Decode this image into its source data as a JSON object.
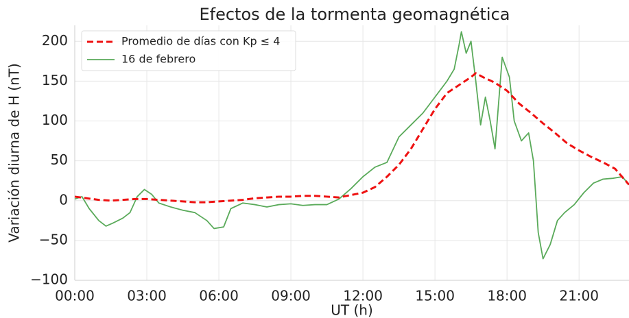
{
  "chart_data": {
    "type": "line",
    "title": "Efectos de la tormenta geomagnética",
    "xlabel": "UT (h)",
    "ylabel": "Variación diurna de H (nT)",
    "xlim": [
      0,
      23.08
    ],
    "ylim": [
      -100,
      220
    ],
    "xticks": [
      {
        "value": 0,
        "label": "00:00"
      },
      {
        "value": 3,
        "label": "03:00"
      },
      {
        "value": 6,
        "label": "06:00"
      },
      {
        "value": 9,
        "label": "09:00"
      },
      {
        "value": 12,
        "label": "12:00"
      },
      {
        "value": 15,
        "label": "15:00"
      },
      {
        "value": 18,
        "label": "18:00"
      },
      {
        "value": 21,
        "label": "21:00"
      }
    ],
    "yticks": [
      {
        "value": -100,
        "label": "−100"
      },
      {
        "value": -50,
        "label": "−50"
      },
      0,
      50,
      100,
      150,
      200
    ],
    "grid": true,
    "legend": "upper left",
    "series": [
      {
        "name": "Promedio de días con Kp $\\leq$ 4",
        "color": "#ee1111",
        "dashed": true,
        "x": [
          0,
          0.5,
          1,
          1.5,
          2,
          2.5,
          3,
          3.5,
          4,
          4.5,
          5,
          5.5,
          6,
          6.5,
          7,
          7.5,
          8,
          8.5,
          9,
          9.5,
          10,
          10.5,
          11,
          11.5,
          12,
          12.5,
          13,
          13.5,
          14,
          14.5,
          15,
          15.5,
          16,
          16.5,
          16.7,
          17,
          17.5,
          18,
          18.5,
          19,
          19.5,
          20,
          20.5,
          21,
          21.5,
          22,
          22.5,
          23.08
        ],
        "values": [
          5,
          3,
          1,
          0,
          1,
          2,
          2,
          1,
          0,
          -1,
          -2,
          -2,
          -1,
          0,
          1,
          3,
          4,
          5,
          5,
          6,
          6,
          5,
          4,
          7,
          10,
          17,
          30,
          45,
          65,
          90,
          115,
          135,
          145,
          155,
          160,
          155,
          148,
          138,
          122,
          110,
          97,
          85,
          72,
          63,
          55,
          48,
          40,
          20
        ]
      },
      {
        "name": "16 de febrero",
        "color": "#5aaa5a",
        "dashed": false,
        "x": [
          0,
          0.3,
          0.6,
          1,
          1.3,
          1.6,
          2,
          2.3,
          2.6,
          2.9,
          3.2,
          3.5,
          4,
          4.5,
          5,
          5.5,
          5.8,
          6.2,
          6.5,
          7,
          7.5,
          8,
          8.5,
          9,
          9.5,
          10,
          10.5,
          11,
          11.5,
          12,
          12.5,
          13,
          13.5,
          14,
          14.5,
          15,
          15.5,
          15.8,
          16,
          16.1,
          16.3,
          16.5,
          16.7,
          16.9,
          17.1,
          17.3,
          17.5,
          17.8,
          18.1,
          18.3,
          18.6,
          18.9,
          19.1,
          19.3,
          19.5,
          19.8,
          20.1,
          20.4,
          20.8,
          21.2,
          21.6,
          22,
          22.4,
          22.8,
          23.08
        ],
        "values": [
          2,
          5,
          -10,
          -25,
          -32,
          -28,
          -22,
          -15,
          5,
          14,
          8,
          -3,
          -8,
          -12,
          -15,
          -25,
          -35,
          -33,
          -10,
          -3,
          -5,
          -8,
          -5,
          -4,
          -6,
          -5,
          -5,
          2,
          15,
          30,
          42,
          48,
          80,
          95,
          110,
          130,
          150,
          165,
          195,
          212,
          185,
          200,
          150,
          95,
          130,
          100,
          65,
          180,
          155,
          100,
          75,
          85,
          50,
          -40,
          -73,
          -55,
          -25,
          -15,
          -5,
          10,
          22,
          27,
          28,
          30,
          20
        ]
      }
    ]
  }
}
